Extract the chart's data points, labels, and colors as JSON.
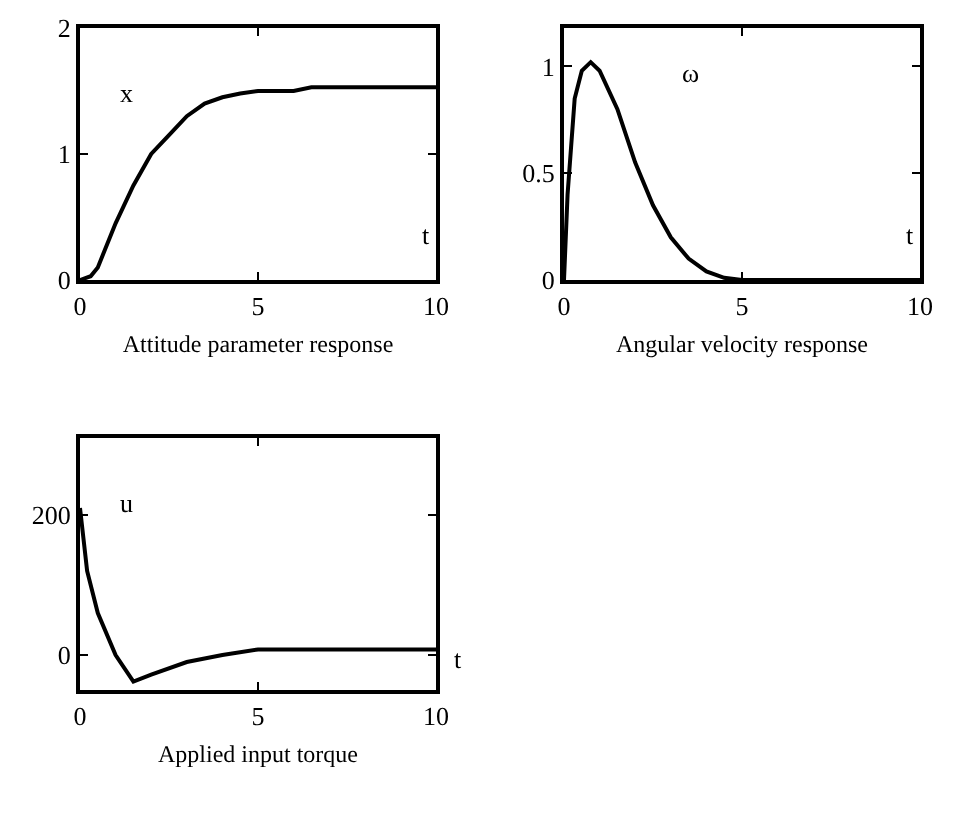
{
  "chart_data": [
    {
      "type": "line",
      "xlabel": "Attitude parameter response",
      "ylabel": "x",
      "annotations": [
        "t"
      ],
      "x": [
        0,
        0.3,
        0.5,
        1,
        1.5,
        2,
        2.5,
        3,
        3.5,
        4,
        4.5,
        5,
        6,
        6.5,
        10
      ],
      "series": [
        {
          "color": "#000000",
          "values": [
            0,
            0.03,
            0.1,
            0.45,
            0.75,
            1.0,
            1.15,
            1.3,
            1.4,
            1.45,
            1.48,
            1.5,
            1.5,
            1.53,
            1.53
          ]
        }
      ],
      "xlim": [
        0,
        10
      ],
      "xticks": [
        0,
        5,
        10
      ],
      "ylim": [
        0,
        2
      ],
      "yticks": [
        0,
        1,
        2
      ]
    },
    {
      "type": "line",
      "xlabel": "Angular velocity response",
      "ylabel": "ω",
      "annotations": [
        "t"
      ],
      "x": [
        0,
        0.1,
        0.3,
        0.5,
        0.75,
        1,
        1.5,
        2,
        2.5,
        3,
        3.5,
        4,
        4.5,
        5,
        10
      ],
      "series": [
        {
          "color": "#000000",
          "values": [
            0,
            0.4,
            0.85,
            0.98,
            1.02,
            0.98,
            0.8,
            0.55,
            0.35,
            0.2,
            0.1,
            0.04,
            0.01,
            0,
            0
          ]
        }
      ],
      "xlim": [
        0,
        10
      ],
      "xticks": [
        0,
        5,
        10
      ],
      "ylim": [
        0,
        1.18
      ],
      "yticks": [
        0,
        0.5,
        1
      ]
    },
    {
      "type": "line",
      "xlabel": "Applied input torque",
      "ylabel": "u",
      "annotations": [
        "t"
      ],
      "x": [
        0,
        0.2,
        0.5,
        1,
        1.5,
        2,
        3,
        4,
        5,
        10
      ],
      "series": [
        {
          "color": "#000000",
          "values": [
            210,
            120,
            60,
            0,
            -38,
            -28,
            -10,
            0,
            8,
            8
          ]
        }
      ],
      "xlim": [
        0,
        10
      ],
      "xticks": [
        0,
        5,
        10
      ],
      "ylim": [
        -50,
        310
      ],
      "yticks": [
        0,
        200
      ]
    }
  ]
}
